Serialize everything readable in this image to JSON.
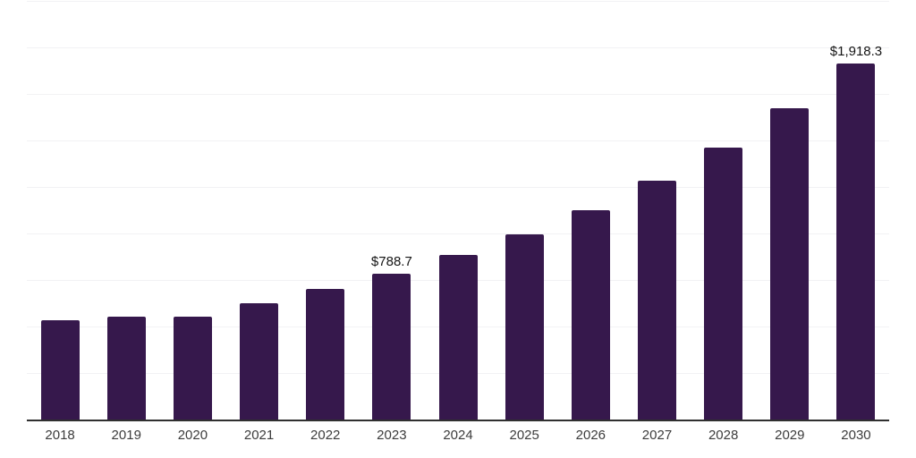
{
  "chart_data": {
    "type": "bar",
    "title": "",
    "xlabel": "",
    "ylabel": "",
    "categories": [
      "2018",
      "2019",
      "2020",
      "2021",
      "2022",
      "2023",
      "2024",
      "2025",
      "2026",
      "2027",
      "2028",
      "2029",
      "2030"
    ],
    "values": [
      537,
      560,
      560,
      630,
      705,
      788.7,
      890,
      998,
      1130,
      1287,
      1466,
      1678,
      1918.3
    ],
    "data_labels": {
      "2023": "$788.7",
      "2030": "$1,918.3"
    },
    "ylim": [
      0,
      2250
    ],
    "gridline_step": 250,
    "grid": true,
    "legend": "none",
    "colors": {
      "bar": "#36184c",
      "axis_line": "#303030",
      "gridline": "#f2f2f4",
      "tick_label": "#3c3c3c",
      "data_label": "#141414",
      "background": "#ffffff"
    }
  }
}
